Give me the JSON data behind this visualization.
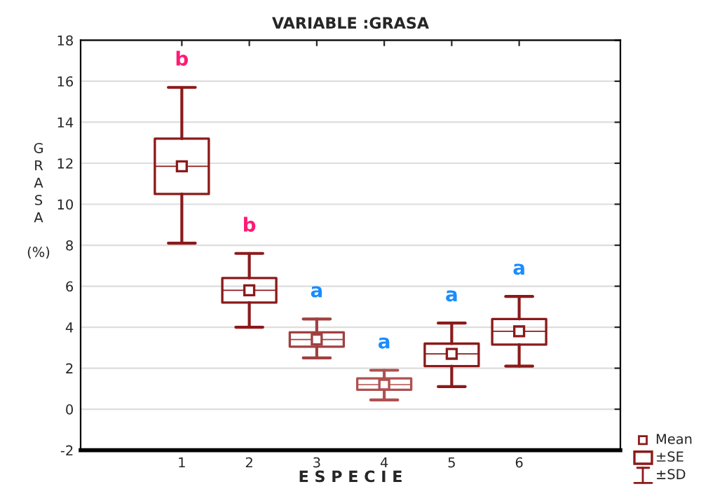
{
  "chart_data": {
    "type": "box",
    "title": "VARIABLE :GRASA",
    "xlabel": "E S P E C I E",
    "ylabel": "GRASA (%)",
    "categories": [
      "1",
      "2",
      "3",
      "4",
      "5",
      "6"
    ],
    "boxes": [
      {
        "low": 8.1,
        "q1": 10.5,
        "median": 11.85,
        "q3": 13.2,
        "high": 15.7,
        "mean": 11.85
      },
      {
        "low": 4.0,
        "q1": 5.2,
        "median": 5.8,
        "q3": 6.4,
        "high": 7.6,
        "mean": 5.8
      },
      {
        "low": 2.5,
        "q1": 3.05,
        "median": 3.4,
        "q3": 3.75,
        "high": 4.4,
        "mean": 3.4
      },
      {
        "low": 0.45,
        "q1": 0.95,
        "median": 1.2,
        "q3": 1.5,
        "high": 1.9,
        "mean": 1.2
      },
      {
        "low": 1.1,
        "q1": 2.1,
        "median": 2.7,
        "q3": 3.2,
        "high": 4.2,
        "mean": 2.7
      },
      {
        "low": 2.1,
        "q1": 3.15,
        "median": 3.8,
        "q3": 4.4,
        "high": 5.5,
        "mean": 3.8
      }
    ],
    "colors": [
      "#8b1a1a",
      "#8b1a1a",
      "#a04040",
      "#b05050",
      "#8b1a1a",
      "#8b1a1a"
    ],
    "ylim": [
      -2,
      18
    ],
    "yticks": [
      -2,
      0,
      2,
      4,
      6,
      8,
      10,
      12,
      14,
      16,
      18
    ],
    "grid": "y",
    "annotations": [
      "b",
      "b",
      "a",
      "a",
      "a",
      "a",
      "Mean",
      "±SE",
      "±SD"
    ]
  }
}
